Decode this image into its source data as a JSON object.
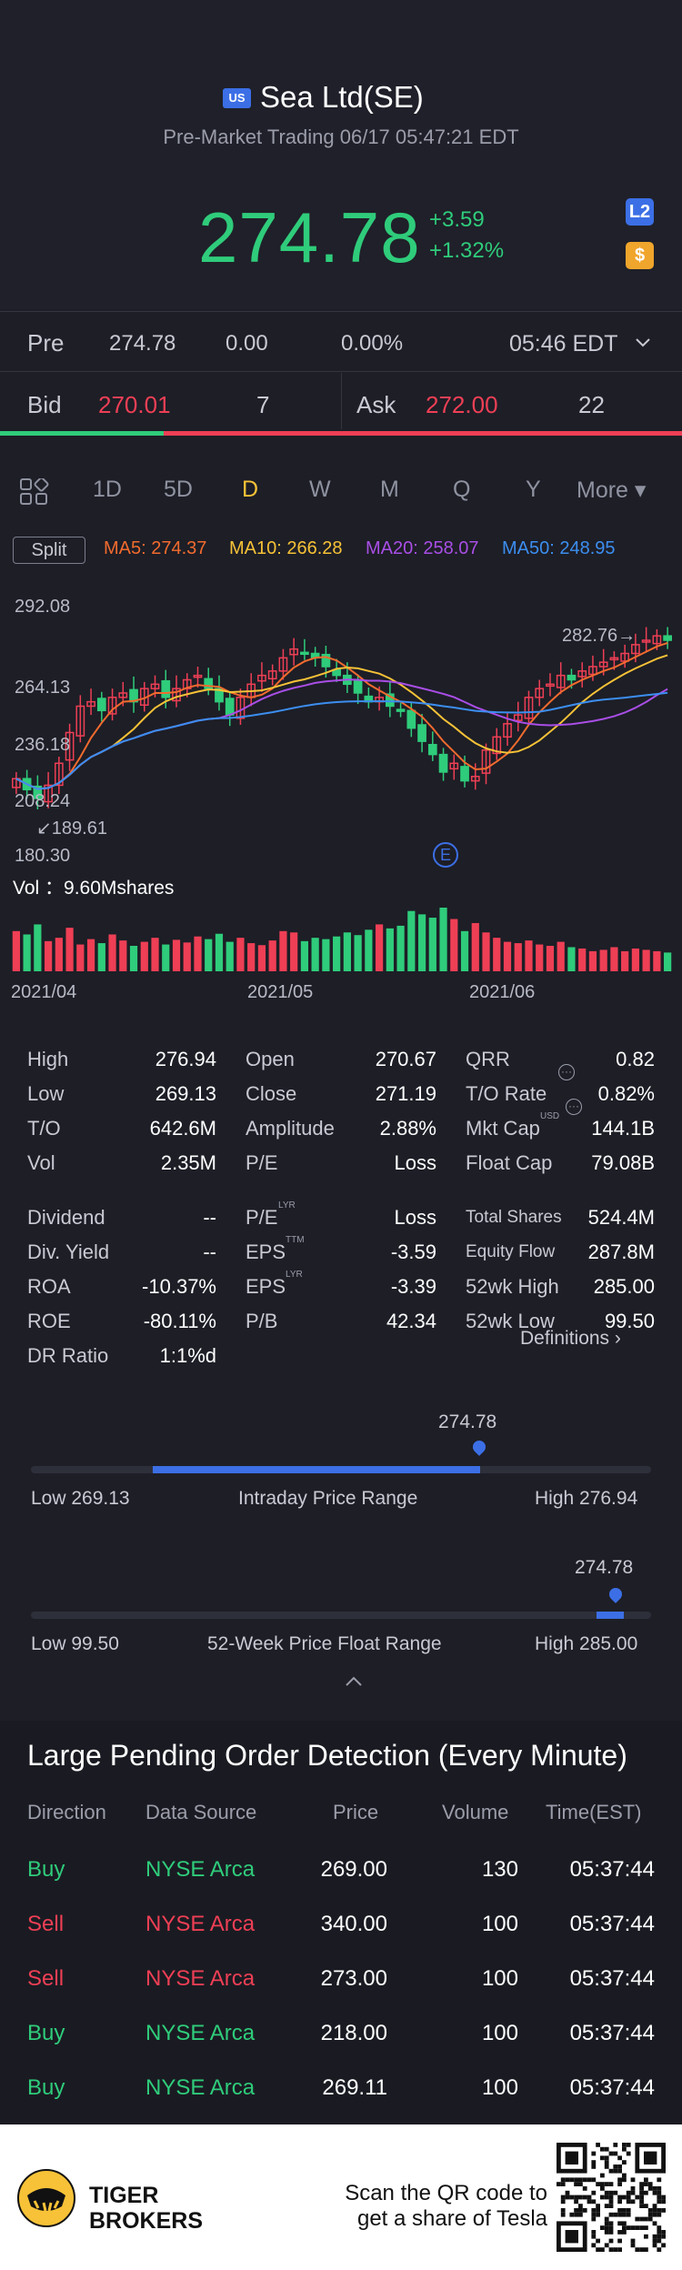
{
  "header": {
    "market_badge": "US",
    "title": "Sea Ltd(SE)",
    "subtitle": "Pre-Market Trading 06/17 05:47:21 EDT",
    "price": "274.78",
    "change": "+3.59",
    "change_pct": "+1.32%",
    "l2_badge": "L2",
    "dollar_badge": "$"
  },
  "pre": {
    "label": "Pre",
    "price": "274.78",
    "change": "0.00",
    "change_pct": "0.00%",
    "time": "05:46 EDT"
  },
  "quote": {
    "bid_label": "Bid",
    "bid_price": "270.01",
    "bid_size": "7",
    "ask_label": "Ask",
    "ask_price": "272.00",
    "ask_size": "22"
  },
  "tabs": {
    "items": [
      "1D",
      "5D",
      "D",
      "W",
      "M",
      "Q",
      "Y",
      "More ▾"
    ],
    "active": "D"
  },
  "indicators": {
    "split_label": "Split",
    "ma5": "MA5: 274.37",
    "ma10": "MA10: 266.28",
    "ma20": "MA20: 258.07",
    "ma50": "MA50: 248.95",
    "colors": {
      "ma5": "#f26b2e",
      "ma10": "#f7c237",
      "ma20": "#a94ee6",
      "ma50": "#3c8ef0",
      "up": "#ee3f55",
      "down": "#2fcc7b"
    }
  },
  "chart_data": {
    "type": "candlestick",
    "y_ticks": [
      "292.08",
      "264.13",
      "236.18",
      "208.24",
      "180.30"
    ],
    "ylim": [
      180.3,
      292.08
    ],
    "x_ticks": [
      "2021/04",
      "2021/05",
      "2021/06"
    ],
    "high_marker": "282.76",
    "low_marker": "189.61",
    "event_marker": "E",
    "volume_label": "Vol ：9.60Mshares",
    "closes": [
      215,
      210,
      206,
      212,
      222,
      236,
      248,
      250,
      246,
      252,
      254,
      250,
      256,
      258,
      252,
      256,
      260,
      262,
      256,
      250,
      244,
      252,
      258,
      262,
      264,
      270,
      274,
      272,
      270,
      266,
      262,
      258,
      254,
      250,
      252,
      248,
      246,
      238,
      232,
      226,
      218,
      222,
      214,
      216,
      228,
      234,
      240,
      244,
      252,
      256,
      258,
      262,
      260,
      264,
      266,
      268,
      270,
      272,
      276,
      278,
      280,
      278
    ],
    "volumes": [
      60,
      55,
      70,
      45,
      50,
      65,
      40,
      48,
      42,
      55,
      46,
      38,
      44,
      50,
      40,
      47,
      43,
      52,
      48,
      56,
      44,
      50,
      42,
      39,
      46,
      60,
      58,
      45,
      50,
      48,
      52,
      58,
      54,
      62,
      70,
      64,
      68,
      90,
      85,
      80,
      95,
      78,
      60,
      72,
      58,
      50,
      44,
      42,
      46,
      40,
      38,
      44,
      36,
      34,
      30,
      32,
      36,
      30,
      34,
      32,
      30,
      28
    ]
  },
  "stats": {
    "col1": [
      {
        "label": "High",
        "value": "276.94"
      },
      {
        "label": "Low",
        "value": "269.13"
      },
      {
        "label": "T/O",
        "value": "642.6M"
      },
      {
        "label": "Vol",
        "value": "2.35M"
      },
      {
        "label": "Dividend",
        "value": "--"
      },
      {
        "label": "Div. Yield",
        "value": "--"
      },
      {
        "label": "ROA",
        "value": "-10.37%"
      },
      {
        "label": "ROE",
        "value": "-80.11%"
      },
      {
        "label": "DR Ratio",
        "value": "1:1%d"
      }
    ],
    "col2": [
      {
        "label": "Open",
        "value": "270.67"
      },
      {
        "label": "Close",
        "value": "271.19"
      },
      {
        "label": "Amplitude",
        "value": "2.88%"
      },
      {
        "label": "P/E",
        "value": "Loss"
      },
      {
        "label": "P/E",
        "sup": "LYR",
        "value": "Loss"
      },
      {
        "label": "EPS",
        "sup": "TTM",
        "value": "-3.59"
      },
      {
        "label": "EPS",
        "sup": "LYR",
        "value": "-3.39"
      },
      {
        "label": "P/B",
        "value": "42.34"
      }
    ],
    "col3": [
      {
        "label": "QRR",
        "value": "0.82"
      },
      {
        "label": "T/O Rate",
        "value": "0.82%"
      },
      {
        "label": "Mkt Cap",
        "sup": "USD",
        "value": "144.1B"
      },
      {
        "label": "Float Cap",
        "value": "79.08B"
      },
      {
        "label": "Total Shares",
        "value": "524.4M"
      },
      {
        "label": "Equity Flow",
        "value": "287.8M"
      },
      {
        "label": "52wk High",
        "value": "285.00"
      },
      {
        "label": "52wk Low",
        "value": "99.50"
      }
    ],
    "definitions_link": "Definitions"
  },
  "intraday_range": {
    "current": "274.78",
    "low_label": "Low 269.13",
    "title": "Intraday Price Range",
    "high_label": "High 276.94",
    "position": 0.72
  },
  "week52_range": {
    "current": "274.78",
    "low_label": "Low 99.50",
    "title": "52-Week Price Float Range",
    "high_label": "High 285.00",
    "position": 0.95
  },
  "orders": {
    "title": "Large Pending Order Detection (Every Minute)",
    "headers": [
      "Direction",
      "Data Source",
      "Price",
      "Volume",
      "Time(EST)"
    ],
    "rows": [
      {
        "direction": "Buy",
        "source": "NYSE Arca",
        "price": "269.00",
        "volume": "130",
        "time": "05:37:44"
      },
      {
        "direction": "Sell",
        "source": "NYSE Arca",
        "price": "340.00",
        "volume": "100",
        "time": "05:37:44"
      },
      {
        "direction": "Sell",
        "source": "NYSE Arca",
        "price": "273.00",
        "volume": "100",
        "time": "05:37:44"
      },
      {
        "direction": "Buy",
        "source": "NYSE Arca",
        "price": "218.00",
        "volume": "100",
        "time": "05:37:44"
      },
      {
        "direction": "Buy",
        "source": "NYSE Arca",
        "price": "269.11",
        "volume": "100",
        "time": "05:37:44"
      }
    ]
  },
  "footer": {
    "brand_line1": "TIGER",
    "brand_line2": "BROKERS",
    "scan_line1": "Scan the QR code to",
    "scan_line2": "get a share of Tesla"
  }
}
